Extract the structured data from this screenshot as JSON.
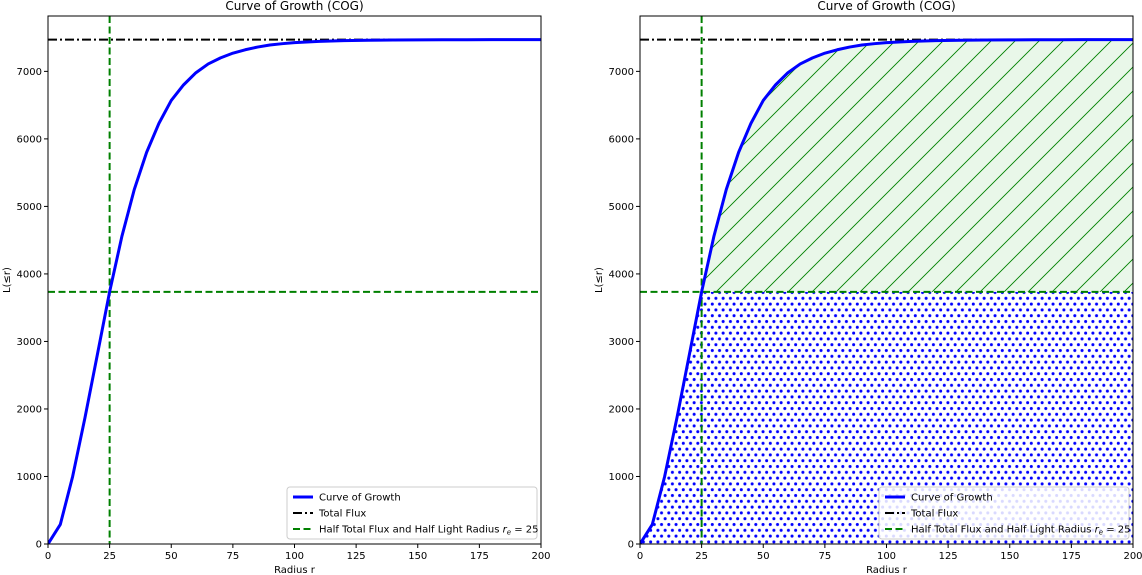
{
  "chart_data": [
    {
      "type": "line",
      "title": "Curve of Growth (COG)",
      "xlabel": "Radius r",
      "ylabel": "L(≤r)",
      "xlim": [
        0,
        200
      ],
      "ylim": [
        0,
        7820
      ],
      "xticks": [
        0,
        25,
        50,
        75,
        100,
        125,
        150,
        175,
        200
      ],
      "yticks": [
        0,
        1000,
        2000,
        3000,
        4000,
        5000,
        6000,
        7000
      ],
      "grid": false,
      "legend_position": "lower right",
      "shading": false,
      "series": [
        {
          "name": "Curve of Growth",
          "color": "#0000ff",
          "style": "solid",
          "x": [
            0,
            5,
            10,
            15,
            20,
            25,
            30,
            35,
            40,
            45,
            50,
            55,
            60,
            65,
            70,
            75,
            80,
            85,
            90,
            95,
            100,
            110,
            120,
            130,
            140,
            150,
            160,
            170,
            180,
            190,
            200
          ],
          "y": [
            0,
            290,
            1000,
            1870,
            2800,
            3735,
            4560,
            5250,
            5800,
            6230,
            6570,
            6800,
            6980,
            7110,
            7200,
            7270,
            7320,
            7360,
            7390,
            7410,
            7425,
            7445,
            7455,
            7460,
            7465,
            7467,
            7468,
            7469,
            7470,
            7470,
            7470
          ]
        }
      ],
      "reference_lines": [
        {
          "name": "Total Flux",
          "orientation": "horizontal",
          "value": 7470,
          "color": "#000000",
          "style": "dashdot"
        },
        {
          "name": "Half Total Flux and Half Light Radius",
          "name_suffix": "r_e = 25",
          "orientation": "horizontal",
          "value": 3735,
          "color": "#008000",
          "style": "dashed"
        },
        {
          "orientation": "vertical",
          "value": 25,
          "color": "#008000",
          "style": "dashed"
        }
      ]
    },
    {
      "type": "line",
      "title": "Curve of Growth (COG)",
      "xlabel": "Radius r",
      "ylabel": "L(≤r)",
      "xlim": [
        0,
        200
      ],
      "ylim": [
        0,
        7820
      ],
      "xticks": [
        0,
        25,
        50,
        75,
        100,
        125,
        150,
        175,
        200
      ],
      "yticks": [
        0,
        1000,
        2000,
        3000,
        4000,
        5000,
        6000,
        7000
      ],
      "grid": false,
      "legend_position": "lower right",
      "shading": true,
      "series": [
        {
          "name": "Curve of Growth",
          "color": "#0000ff",
          "style": "solid",
          "x": [
            0,
            5,
            10,
            15,
            20,
            25,
            30,
            35,
            40,
            45,
            50,
            55,
            60,
            65,
            70,
            75,
            80,
            85,
            90,
            95,
            100,
            110,
            120,
            130,
            140,
            150,
            160,
            170,
            180,
            190,
            200
          ],
          "y": [
            0,
            290,
            1000,
            1870,
            2800,
            3735,
            4560,
            5250,
            5800,
            6230,
            6570,
            6800,
            6980,
            7110,
            7200,
            7270,
            7320,
            7360,
            7390,
            7410,
            7425,
            7445,
            7455,
            7460,
            7465,
            7467,
            7468,
            7469,
            7470,
            7470,
            7470
          ]
        }
      ],
      "reference_lines": [
        {
          "name": "Total Flux",
          "orientation": "horizontal",
          "value": 7470,
          "color": "#000000",
          "style": "dashdot"
        },
        {
          "name": "Half Total Flux and Half Light Radius",
          "name_suffix": "r_e = 25",
          "orientation": "horizontal",
          "value": 3735,
          "color": "#008000",
          "style": "dashed"
        },
        {
          "orientation": "vertical",
          "value": 25,
          "color": "#008000",
          "style": "dashed"
        }
      ]
    }
  ]
}
